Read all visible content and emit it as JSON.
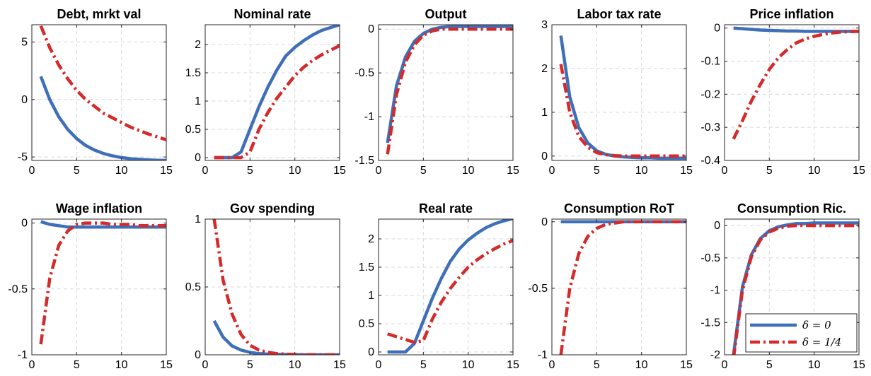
{
  "colors": {
    "series1": "#3f6fb8",
    "series2": "#d42a2a",
    "grid": "#d8d8d8",
    "axis": "#262626"
  },
  "legend": {
    "entries": [
      {
        "label": "δ = 0",
        "color": "#3f6fb8",
        "dash": "solid"
      },
      {
        "label": "δ = 1/4",
        "color": "#d42a2a",
        "dash": "dashdot"
      }
    ],
    "location": "bottom-right of last panel"
  },
  "chart_data": [
    {
      "type": "line",
      "title": "Debt, mrkt val",
      "xlim": [
        0,
        15
      ],
      "ylim": [
        -5.3,
        6.5
      ],
      "xticks": [
        0,
        5,
        10,
        15
      ],
      "yticks": [
        -5,
        0,
        5
      ],
      "ytick_labels": [
        "-5",
        "0",
        "5"
      ],
      "grid": true,
      "x": [
        1,
        2,
        3,
        4,
        5,
        6,
        7,
        8,
        9,
        10,
        11,
        12,
        13,
        14,
        15
      ],
      "series": [
        {
          "name": "δ = 0",
          "values": [
            2.0,
            0.0,
            -1.5,
            -2.6,
            -3.4,
            -4.0,
            -4.4,
            -4.7,
            -4.9,
            -5.05,
            -5.15,
            -5.2,
            -5.25,
            -5.28,
            -5.3
          ]
        },
        {
          "name": "δ = 1/4",
          "values": [
            6.4,
            4.5,
            3.0,
            1.8,
            0.8,
            0.0,
            -0.6,
            -1.2,
            -1.6,
            -2.0,
            -2.4,
            -2.7,
            -3.0,
            -3.25,
            -3.5
          ]
        }
      ]
    },
    {
      "type": "line",
      "title": "Nominal rate",
      "xlim": [
        0,
        15
      ],
      "ylim": [
        -0.05,
        2.35
      ],
      "xticks": [
        0,
        5,
        10,
        15
      ],
      "yticks": [
        0,
        0.5,
        1,
        1.5,
        2
      ],
      "ytick_labels": [
        "0",
        "0.5",
        "1",
        "1.5",
        "2"
      ],
      "grid": true,
      "x": [
        1,
        2,
        3,
        4,
        5,
        6,
        7,
        8,
        9,
        10,
        11,
        12,
        13,
        14,
        15
      ],
      "series": [
        {
          "name": "δ = 0",
          "values": [
            0,
            0,
            0,
            0.1,
            0.5,
            0.9,
            1.25,
            1.55,
            1.8,
            1.95,
            2.07,
            2.17,
            2.25,
            2.3,
            2.35
          ]
        },
        {
          "name": "δ = 1/4",
          "values": [
            0,
            0,
            0,
            0,
            0.1,
            0.5,
            0.8,
            1.05,
            1.25,
            1.45,
            1.6,
            1.72,
            1.82,
            1.9,
            1.98
          ]
        }
      ]
    },
    {
      "type": "line",
      "title": "Output",
      "xlim": [
        0,
        15
      ],
      "ylim": [
        -1.5,
        0.05
      ],
      "xticks": [
        0,
        5,
        10,
        15
      ],
      "yticks": [
        -1.5,
        -1,
        -0.5,
        0
      ],
      "ytick_labels": [
        "-1.5",
        "-1",
        "-0.5",
        "0"
      ],
      "grid": true,
      "x": [
        1,
        2,
        3,
        4,
        5,
        6,
        7,
        8,
        9,
        10,
        11,
        12,
        13,
        14,
        15
      ],
      "series": [
        {
          "name": "δ = 0",
          "values": [
            -1.3,
            -0.65,
            -0.32,
            -0.14,
            -0.05,
            0.0,
            0.02,
            0.03,
            0.03,
            0.03,
            0.03,
            0.03,
            0.03,
            0.03,
            0.03
          ]
        },
        {
          "name": "δ = 1/4",
          "values": [
            -1.43,
            -0.75,
            -0.38,
            -0.18,
            -0.07,
            -0.02,
            0.0,
            0.0,
            0.0,
            0.0,
            0.0,
            0.0,
            0.0,
            0.0,
            0.0
          ]
        }
      ]
    },
    {
      "type": "line",
      "title": "Labor tax rate",
      "xlim": [
        0,
        15
      ],
      "ylim": [
        -0.1,
        3.0
      ],
      "xticks": [
        0,
        5,
        10,
        15
      ],
      "yticks": [
        0,
        1,
        2,
        3
      ],
      "ytick_labels": [
        "0",
        "1",
        "2",
        "3"
      ],
      "grid": true,
      "x": [
        1,
        2,
        3,
        4,
        5,
        6,
        7,
        8,
        9,
        10,
        11,
        12,
        13,
        14,
        15
      ],
      "series": [
        {
          "name": "δ = 0",
          "values": [
            2.75,
            1.35,
            0.65,
            0.3,
            0.12,
            0.04,
            0.0,
            -0.02,
            -0.03,
            -0.04,
            -0.04,
            -0.05,
            -0.05,
            -0.05,
            -0.05
          ]
        },
        {
          "name": "δ = 1/4",
          "values": [
            2.1,
            1.0,
            0.45,
            0.2,
            0.08,
            0.03,
            0.01,
            0.0,
            0.0,
            0.0,
            0.0,
            0.0,
            0.0,
            0.0,
            0.0
          ]
        }
      ]
    },
    {
      "type": "line",
      "title": "Price inflation",
      "xlim": [
        0,
        15
      ],
      "ylim": [
        -0.4,
        0.01
      ],
      "xticks": [
        0,
        5,
        10,
        15
      ],
      "yticks": [
        -0.4,
        -0.3,
        -0.2,
        -0.1,
        0
      ],
      "ytick_labels": [
        "-0.4",
        "-0.3",
        "-0.2",
        "-0.1",
        "0"
      ],
      "grid": true,
      "x": [
        1,
        2,
        3,
        4,
        5,
        6,
        7,
        8,
        9,
        10,
        11,
        12,
        13,
        14,
        15
      ],
      "series": [
        {
          "name": "δ = 0",
          "values": [
            0.0,
            -0.002,
            -0.004,
            -0.006,
            -0.007,
            -0.008,
            -0.009,
            -0.009,
            -0.01,
            -0.01,
            -0.01,
            -0.01,
            -0.01,
            -0.01,
            -0.01
          ]
        },
        {
          "name": "δ = 1/4",
          "values": [
            -0.335,
            -0.28,
            -0.22,
            -0.17,
            -0.125,
            -0.09,
            -0.065,
            -0.045,
            -0.033,
            -0.025,
            -0.019,
            -0.015,
            -0.012,
            -0.011,
            -0.01
          ]
        }
      ]
    },
    {
      "type": "line",
      "title": "Wage inflation",
      "xlim": [
        0,
        15
      ],
      "ylim": [
        -1.0,
        0.03
      ],
      "xticks": [
        0,
        5,
        10,
        15
      ],
      "yticks": [
        -1,
        -0.5,
        0
      ],
      "ytick_labels": [
        "-1",
        "-0.5",
        "0"
      ],
      "grid": true,
      "x": [
        1,
        2,
        3,
        4,
        5,
        6,
        7,
        8,
        9,
        10,
        11,
        12,
        13,
        14,
        15
      ],
      "series": [
        {
          "name": "δ = 0",
          "values": [
            0.01,
            -0.01,
            -0.02,
            -0.03,
            -0.03,
            -0.03,
            -0.03,
            -0.03,
            -0.03,
            -0.03,
            -0.03,
            -0.03,
            -0.03,
            -0.03,
            -0.03
          ]
        },
        {
          "name": "δ = 1/4",
          "values": [
            -0.92,
            -0.42,
            -0.17,
            -0.06,
            -0.01,
            0.0,
            0.0,
            0.0,
            -0.01,
            -0.01,
            -0.01,
            -0.02,
            -0.02,
            -0.02,
            -0.02
          ]
        }
      ]
    },
    {
      "type": "line",
      "title": "Gov spending",
      "xlim": [
        0,
        15
      ],
      "ylim": [
        0,
        1
      ],
      "xticks": [
        0,
        5,
        10,
        15
      ],
      "yticks": [
        0,
        0.5,
        1
      ],
      "ytick_labels": [
        "0",
        "0.5",
        "1"
      ],
      "grid": true,
      "x": [
        1,
        2,
        3,
        4,
        5,
        6,
        7,
        8,
        9,
        10,
        11,
        12,
        13,
        14,
        15
      ],
      "series": [
        {
          "name": "δ = 0",
          "values": [
            0.25,
            0.13,
            0.065,
            0.035,
            0.018,
            0.009,
            0.005,
            0.003,
            0.002,
            0.001,
            0.0,
            0.0,
            0.0,
            0.0,
            0.0
          ]
        },
        {
          "name": "δ = 1/4",
          "values": [
            1.0,
            0.55,
            0.3,
            0.15,
            0.07,
            0.035,
            0.018,
            0.009,
            0.005,
            0.002,
            0.001,
            0.0,
            0.0,
            0.0,
            0.0
          ]
        }
      ]
    },
    {
      "type": "line",
      "title": "Real rate",
      "xlim": [
        0,
        15
      ],
      "ylim": [
        -0.05,
        2.35
      ],
      "xticks": [
        0,
        5,
        10,
        15
      ],
      "yticks": [
        0,
        0.5,
        1,
        1.5,
        2
      ],
      "ytick_labels": [
        "0",
        "0.5",
        "1",
        "1.5",
        "2"
      ],
      "grid": true,
      "x": [
        1,
        2,
        3,
        4,
        5,
        6,
        7,
        8,
        9,
        10,
        11,
        12,
        13,
        14,
        15
      ],
      "series": [
        {
          "name": "δ = 0",
          "values": [
            0,
            0,
            0,
            0.15,
            0.55,
            0.95,
            1.3,
            1.6,
            1.82,
            1.98,
            2.1,
            2.2,
            2.27,
            2.32,
            2.36
          ]
        },
        {
          "name": "δ = 1/4",
          "values": [
            0.32,
            0.27,
            0.22,
            0.17,
            0.2,
            0.58,
            0.88,
            1.12,
            1.32,
            1.5,
            1.63,
            1.74,
            1.83,
            1.91,
            1.97
          ]
        }
      ]
    },
    {
      "type": "line",
      "title": "Consumption RoT",
      "xlim": [
        0,
        15
      ],
      "ylim": [
        -1.0,
        0.02
      ],
      "xticks": [
        0,
        5,
        10,
        15
      ],
      "yticks": [
        -1,
        -0.5,
        0
      ],
      "ytick_labels": [
        "-1",
        "-0.5",
        "0"
      ],
      "grid": true,
      "x": [
        1,
        2,
        3,
        4,
        5,
        6,
        7,
        8,
        9,
        10,
        11,
        12,
        13,
        14,
        15
      ],
      "series": [
        {
          "name": "δ = 0",
          "values": [
            0,
            0,
            0,
            0,
            0,
            0,
            0,
            0,
            0,
            0,
            0,
            0,
            0,
            0,
            0
          ]
        },
        {
          "name": "δ = 1/4",
          "values": [
            -1.0,
            -0.5,
            -0.24,
            -0.11,
            -0.05,
            -0.02,
            -0.01,
            0.0,
            0.0,
            0.0,
            0.0,
            0.0,
            0.0,
            0.0,
            0.0
          ]
        }
      ]
    },
    {
      "type": "line",
      "title": "Consumption Ric.",
      "xlim": [
        0,
        15
      ],
      "ylim": [
        -2.0,
        0.1
      ],
      "xticks": [
        0,
        5,
        10,
        15
      ],
      "yticks": [
        -2,
        -1.5,
        -1,
        -0.5,
        0
      ],
      "ytick_labels": [
        "-2",
        "-1.5",
        "-1",
        "-0.5",
        "0"
      ],
      "grid": true,
      "x": [
        1,
        2,
        3,
        4,
        5,
        6,
        7,
        8,
        9,
        10,
        11,
        12,
        13,
        14,
        15
      ],
      "series": [
        {
          "name": "δ = 0",
          "values": [
            -2.0,
            -0.95,
            -0.45,
            -0.2,
            -0.08,
            -0.02,
            0.01,
            0.03,
            0.03,
            0.04,
            0.04,
            0.04,
            0.04,
            0.04,
            0.04
          ]
        },
        {
          "name": "δ = 1/4",
          "values": [
            -2.05,
            -1.0,
            -0.48,
            -0.22,
            -0.1,
            -0.04,
            -0.01,
            0.0,
            0.0,
            0.0,
            0.0,
            0.0,
            0.0,
            0.0,
            0.0
          ]
        }
      ]
    }
  ]
}
